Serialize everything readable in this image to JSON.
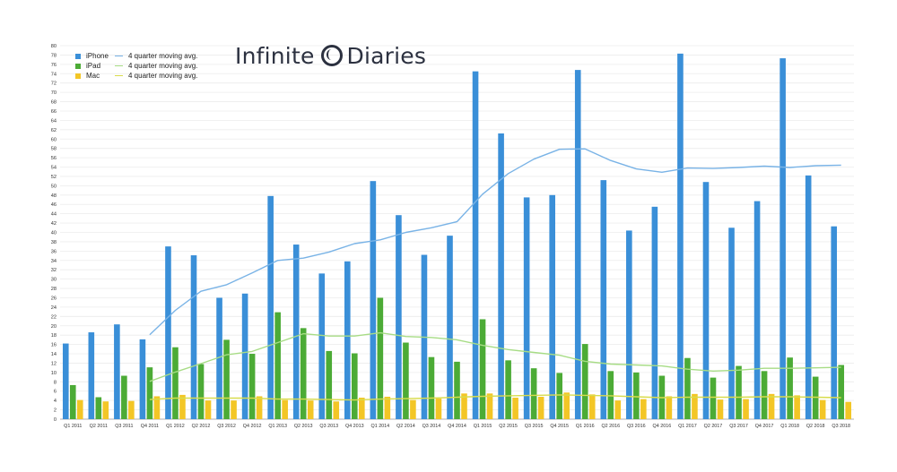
{
  "brand": {
    "name_left": "Infinite",
    "name_right": "Diaries"
  },
  "colors": {
    "iphone": "#3a8fd8",
    "ipad": "#4cab36",
    "mac": "#f3c626",
    "iphone_avg": "#79b3e6",
    "ipad_avg": "#a7dc85",
    "mac_avg": "#d8dc4c"
  },
  "chart_data": {
    "type": "bar",
    "title": "",
    "xlabel": "",
    "ylabel": "",
    "ylim": [
      0,
      80
    ],
    "yticks": [
      0,
      2,
      4,
      6,
      8,
      10,
      12,
      14,
      16,
      18,
      20,
      22,
      24,
      26,
      28,
      30,
      32,
      34,
      36,
      38,
      40,
      42,
      44,
      46,
      48,
      50,
      52,
      54,
      56,
      58,
      60,
      62,
      64,
      66,
      68,
      70,
      72,
      74,
      76,
      78,
      80
    ],
    "grid": true,
    "legend_position": "top-left",
    "categories": [
      "Q1 2011",
      "Q2 2011",
      "Q3 2011",
      "Q4 2011",
      "Q1 2012",
      "Q2 2012",
      "Q3 2012",
      "Q4 2012",
      "Q1 2013",
      "Q2 2013",
      "Q3 2013",
      "Q4 2013",
      "Q1 2014",
      "Q2 2014",
      "Q3 2014",
      "Q4 2014",
      "Q1 2015",
      "Q2 2015",
      "Q3 2015",
      "Q4 2015",
      "Q1 2016",
      "Q2 2016",
      "Q3 2016",
      "Q4 2016",
      "Q1 2017",
      "Q2 2017",
      "Q3 2017",
      "Q4 2017",
      "Q1 2018",
      "Q2 2018",
      "Q3 2018"
    ],
    "series": [
      {
        "name": "iPhone",
        "kind": "bar",
        "values": [
          16.2,
          18.6,
          20.3,
          17.1,
          37.0,
          35.1,
          26.0,
          26.9,
          47.8,
          37.4,
          31.2,
          33.8,
          51.0,
          43.7,
          35.2,
          39.3,
          74.5,
          61.2,
          47.5,
          48.0,
          74.8,
          51.2,
          40.4,
          45.5,
          78.3,
          50.8,
          41.0,
          46.7,
          77.3,
          52.2,
          41.3
        ]
      },
      {
        "name": "iPad",
        "kind": "bar",
        "values": [
          7.3,
          4.7,
          9.3,
          11.1,
          15.4,
          11.8,
          17.0,
          14.0,
          22.9,
          19.5,
          14.6,
          14.1,
          26.0,
          16.4,
          13.3,
          12.3,
          21.4,
          12.6,
          10.9,
          9.9,
          16.1,
          10.3,
          10.0,
          9.3,
          13.1,
          8.9,
          11.4,
          10.3,
          13.2,
          9.1,
          11.6
        ]
      },
      {
        "name": "Mac",
        "kind": "bar",
        "values": [
          4.1,
          3.8,
          3.9,
          4.9,
          5.2,
          4.0,
          4.0,
          4.9,
          4.1,
          4.0,
          3.8,
          4.6,
          4.8,
          4.1,
          4.4,
          5.5,
          5.5,
          4.6,
          4.8,
          5.7,
          5.3,
          4.0,
          4.3,
          4.9,
          5.4,
          4.2,
          4.3,
          5.4,
          5.1,
          4.1,
          3.7
        ]
      },
      {
        "name": "4 quarter moving avg.",
        "kind": "line",
        "of": "iPhone",
        "values": [
          null,
          null,
          null,
          18.1,
          23.3,
          27.4,
          28.8,
          31.3,
          34.0,
          34.5,
          35.8,
          37.6,
          38.4,
          40.0,
          41.0,
          42.3,
          48.2,
          52.6,
          55.7,
          57.8,
          57.9,
          55.4,
          53.6,
          52.9,
          53.8,
          53.7,
          53.9,
          54.2,
          53.9,
          54.3,
          54.4
        ]
      },
      {
        "name": "4 quarter moving avg.",
        "kind": "line",
        "of": "iPad",
        "values": [
          null,
          null,
          null,
          8.1,
          10.1,
          11.9,
          13.8,
          14.5,
          16.4,
          18.3,
          17.8,
          17.8,
          18.5,
          17.7,
          17.5,
          17.0,
          15.8,
          14.9,
          14.3,
          13.7,
          12.4,
          11.8,
          11.6,
          11.4,
          10.7,
          10.3,
          10.5,
          10.9,
          10.9,
          11.0,
          11.1
        ]
      },
      {
        "name": "4 quarter moving avg.",
        "kind": "line",
        "of": "Mac",
        "values": [
          null,
          null,
          null,
          4.2,
          4.5,
          4.5,
          4.5,
          4.5,
          4.3,
          4.3,
          4.2,
          4.1,
          4.3,
          4.4,
          4.5,
          4.7,
          4.9,
          5.0,
          5.1,
          5.2,
          5.1,
          5.0,
          4.8,
          4.6,
          4.7,
          4.7,
          4.7,
          4.8,
          4.8,
          4.7,
          4.6
        ]
      }
    ]
  }
}
